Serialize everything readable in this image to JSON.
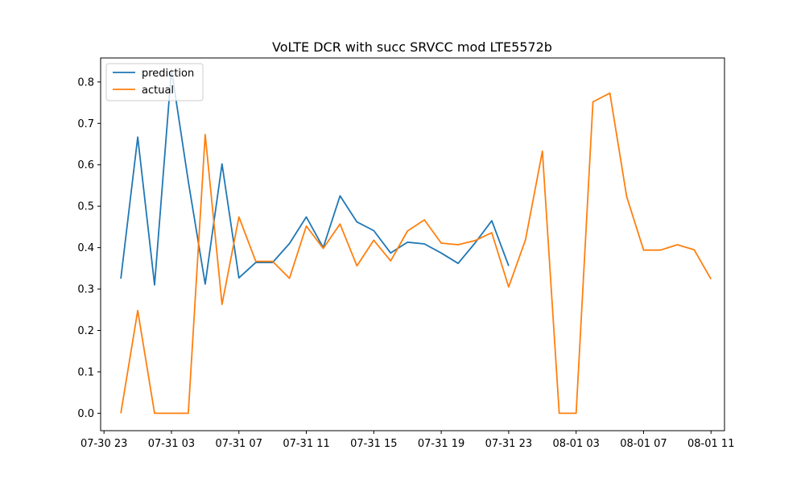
{
  "chart_data": {
    "type": "line",
    "title": "VoLTE DCR with succ SRVCC mod LTE5572b",
    "xlabel": "",
    "ylabel": "",
    "x": [
      "07-31 00:00",
      "07-31 01:00",
      "07-31 02:00",
      "07-31 03:00",
      "07-31 04:00",
      "07-31 05:00",
      "07-31 06:00",
      "07-31 07:00",
      "07-31 08:00",
      "07-31 09:00",
      "07-31 10:00",
      "07-31 11:00",
      "07-31 12:00",
      "07-31 13:00",
      "07-31 14:00",
      "07-31 15:00",
      "07-31 16:00",
      "07-31 17:00",
      "07-31 18:00",
      "07-31 19:00",
      "07-31 20:00",
      "07-31 21:00",
      "07-31 22:00",
      "07-31 23:00",
      "08-01 00:00",
      "08-01 01:00",
      "08-01 02:00",
      "08-01 03:00",
      "08-01 04:00",
      "08-01 05:00",
      "08-01 06:00",
      "08-01 07:00",
      "08-01 08:00",
      "08-01 09:00",
      "08-01 10:00",
      "08-01 11:00"
    ],
    "x_tick_labels": [
      "07-30 23",
      "07-31 03",
      "07-31 07",
      "07-31 11",
      "07-31 15",
      "07-31 19",
      "07-31 23",
      "08-01 03",
      "08-01 07",
      "08-01 11"
    ],
    "x_tick_times": [
      "07-30 23:00",
      "07-31 03:00",
      "07-31 07:00",
      "07-31 11:00",
      "07-31 15:00",
      "07-31 19:00",
      "07-31 23:00",
      "08-01 03:00",
      "08-01 07:00",
      "08-01 11:00"
    ],
    "y_ticks": [
      0.0,
      0.1,
      0.2,
      0.3,
      0.4,
      0.5,
      0.6,
      0.7,
      0.8
    ],
    "y_tick_labels": [
      "0.0",
      "0.1",
      "0.2",
      "0.3",
      "0.4",
      "0.5",
      "0.6",
      "0.7",
      "0.8"
    ],
    "xlim": [
      "07-30 22:48",
      "08-01 11:48"
    ],
    "ylim": [
      -0.042,
      0.858
    ],
    "grid": false,
    "legend_position": "upper-left",
    "series": [
      {
        "name": "prediction",
        "color": "#1f77b4",
        "values": [
          0.325,
          0.667,
          0.31,
          0.83,
          0.56,
          0.312,
          0.602,
          0.327,
          0.364,
          0.364,
          0.41,
          0.474,
          0.4,
          0.525,
          0.462,
          0.441,
          0.387,
          0.413,
          0.409,
          0.387,
          0.362,
          0.411,
          0.465,
          0.356,
          null,
          null,
          null,
          null,
          null,
          null,
          null,
          null,
          null,
          null,
          null,
          null
        ]
      },
      {
        "name": "actual",
        "color": "#ff7f0e",
        "values": [
          0.0,
          0.248,
          0.0,
          0.0,
          0.0,
          0.673,
          0.263,
          0.474,
          0.367,
          0.367,
          0.326,
          0.452,
          0.398,
          0.457,
          0.356,
          0.418,
          0.368,
          0.44,
          0.467,
          0.411,
          0.407,
          0.417,
          0.436,
          0.305,
          0.419,
          0.633,
          0.0,
          0.0,
          0.752,
          0.773,
          0.523,
          0.394,
          0.394,
          0.407,
          0.395,
          0.324
        ]
      }
    ]
  }
}
